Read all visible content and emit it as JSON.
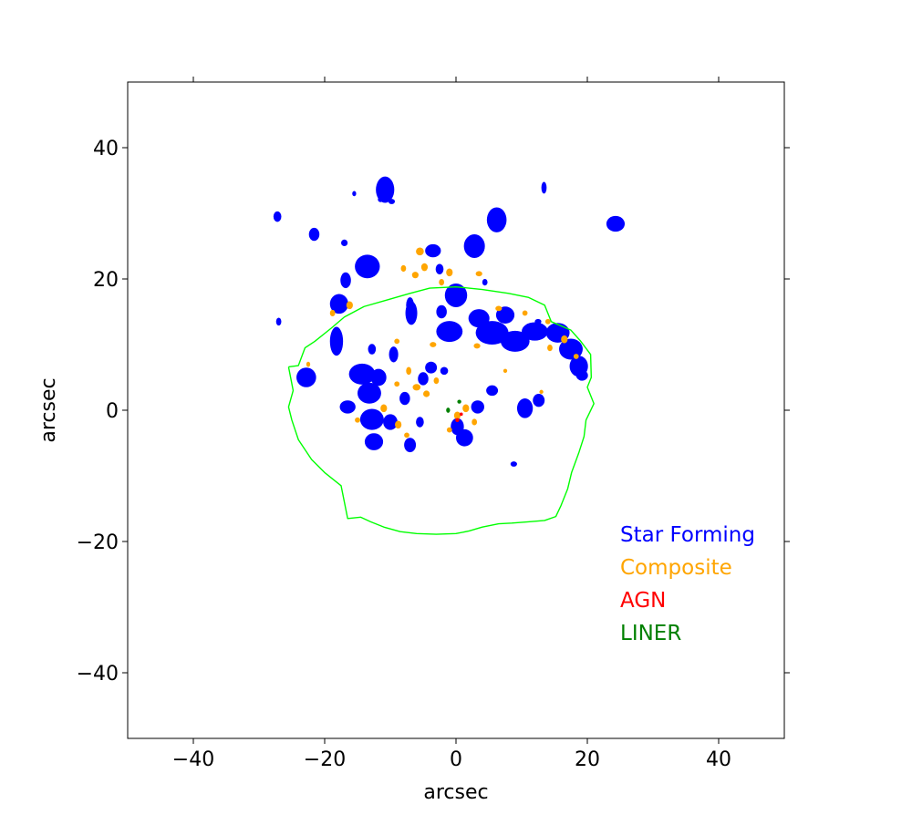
{
  "chart_data": {
    "type": "scatter",
    "xlabel": "arcsec",
    "ylabel": "arcsec",
    "xlim": [
      -50,
      50
    ],
    "ylim": [
      -50,
      50
    ],
    "xticks": [
      -40,
      -20,
      0,
      20,
      40
    ],
    "yticks": [
      -40,
      -20,
      0,
      20,
      40
    ],
    "xtick_labels": [
      "−40",
      "−20",
      "0",
      "20",
      "40"
    ],
    "ytick_labels": [
      "−40",
      "−20",
      "0",
      "20",
      "40"
    ],
    "grid": false,
    "legend": {
      "placement": "lower-right",
      "entries": [
        {
          "label": "Star Forming",
          "color": "#0000ff"
        },
        {
          "label": "Composite",
          "color": "#ffa500"
        },
        {
          "label": "AGN",
          "color": "#ff0000"
        },
        {
          "label": "LINER",
          "color": "#008000"
        }
      ]
    },
    "contour": {
      "color": "#00ff00",
      "points": [
        [
          -25.5,
          6.6
        ],
        [
          -24,
          6.8
        ],
        [
          -23,
          9.5
        ],
        [
          -21.5,
          10.5
        ],
        [
          -19,
          12.5
        ],
        [
          -17,
          14.2
        ],
        [
          -14,
          15.8
        ],
        [
          -10.5,
          16.8
        ],
        [
          -7,
          17.8
        ],
        [
          -4,
          18.6
        ],
        [
          0,
          18.8
        ],
        [
          4,
          18.4
        ],
        [
          8,
          17.8
        ],
        [
          11,
          17.2
        ],
        [
          13.5,
          16
        ],
        [
          14.5,
          13.5
        ],
        [
          17.5,
          12.2
        ],
        [
          19,
          10.5
        ],
        [
          20.5,
          8.5
        ],
        [
          20.6,
          5
        ],
        [
          20,
          3.5
        ],
        [
          21,
          1
        ],
        [
          19.8,
          -1.5
        ],
        [
          19.5,
          -4
        ],
        [
          18.7,
          -6.5
        ],
        [
          17.6,
          -9.5
        ],
        [
          17,
          -12
        ],
        [
          16,
          -14.5
        ],
        [
          15.2,
          -16.2
        ],
        [
          13.5,
          -16.8
        ],
        [
          11,
          -17
        ],
        [
          8.5,
          -17.2
        ],
        [
          6.5,
          -17.3
        ],
        [
          4,
          -17.8
        ],
        [
          2,
          -18.4
        ],
        [
          0,
          -18.8
        ],
        [
          -3,
          -18.9
        ],
        [
          -6,
          -18.8
        ],
        [
          -8.5,
          -18.5
        ],
        [
          -11,
          -17.8
        ],
        [
          -13,
          -17
        ],
        [
          -14.5,
          -16.3
        ],
        [
          -16.5,
          -16.5
        ],
        [
          -17,
          -14
        ],
        [
          -17.5,
          -11.5
        ],
        [
          -20,
          -9.5
        ],
        [
          -22,
          -7.5
        ],
        [
          -24,
          -4.5
        ],
        [
          -25,
          -1.5
        ],
        [
          -25.5,
          0.5
        ],
        [
          -24.8,
          3
        ],
        [
          -25.5,
          6.6
        ]
      ]
    },
    "series": [
      {
        "name": "Star Forming",
        "color": "#0000ff",
        "blobs": [
          {
            "x": -10.8,
            "y": 33.6,
            "rx": 1.4,
            "ry": 2.0
          },
          {
            "x": -27.2,
            "y": 29.5,
            "rx": 0.6,
            "ry": 0.8
          },
          {
            "x": -21.6,
            "y": 26.8,
            "rx": 0.8,
            "ry": 1.0
          },
          {
            "x": -17,
            "y": 25.5,
            "rx": 0.5,
            "ry": 0.5
          },
          {
            "x": -13.5,
            "y": 21.9,
            "rx": 1.9,
            "ry": 1.8
          },
          {
            "x": -16.8,
            "y": 19.8,
            "rx": 0.8,
            "ry": 1.2
          },
          {
            "x": -17.8,
            "y": 16.2,
            "rx": 1.4,
            "ry": 1.5
          },
          {
            "x": -18.2,
            "y": 10.5,
            "rx": 1.0,
            "ry": 2.2
          },
          {
            "x": -22.8,
            "y": 5.0,
            "rx": 1.5,
            "ry": 1.5
          },
          {
            "x": -27,
            "y": 13.5,
            "rx": 0.4,
            "ry": 0.6
          },
          {
            "x": -7,
            "y": 16.0,
            "rx": 0.6,
            "ry": 1.2
          },
          {
            "x": -3.5,
            "y": 24.3,
            "rx": 1.2,
            "ry": 1.0
          },
          {
            "x": -2.5,
            "y": 21.5,
            "rx": 0.6,
            "ry": 0.8
          },
          {
            "x": 6.2,
            "y": 29.0,
            "rx": 1.5,
            "ry": 1.9
          },
          {
            "x": 2.8,
            "y": 25.0,
            "rx": 1.6,
            "ry": 1.8
          },
          {
            "x": 0.0,
            "y": 17.5,
            "rx": 1.7,
            "ry": 1.8
          },
          {
            "x": -2.2,
            "y": 15.0,
            "rx": 0.8,
            "ry": 1.0
          },
          {
            "x": -6.8,
            "y": 14.8,
            "rx": 0.9,
            "ry": 1.8
          },
          {
            "x": -9.5,
            "y": 8.5,
            "rx": 0.7,
            "ry": 1.2
          },
          {
            "x": -12.8,
            "y": 9.3,
            "rx": 0.6,
            "ry": 0.8
          },
          {
            "x": -1.0,
            "y": 12.0,
            "rx": 2.0,
            "ry": 1.6
          },
          {
            "x": 3.5,
            "y": 14.0,
            "rx": 1.6,
            "ry": 1.4
          },
          {
            "x": 5.5,
            "y": 11.8,
            "rx": 2.5,
            "ry": 1.8
          },
          {
            "x": 9.0,
            "y": 10.5,
            "rx": 2.2,
            "ry": 1.6
          },
          {
            "x": 12.0,
            "y": 12.0,
            "rx": 2.0,
            "ry": 1.4
          },
          {
            "x": 7.5,
            "y": 14.5,
            "rx": 1.4,
            "ry": 1.3
          },
          {
            "x": 15.5,
            "y": 11.8,
            "rx": 1.8,
            "ry": 1.5
          },
          {
            "x": 17.5,
            "y": 9.3,
            "rx": 1.8,
            "ry": 1.6
          },
          {
            "x": 18.7,
            "y": 6.7,
            "rx": 1.4,
            "ry": 1.6
          },
          {
            "x": 19.2,
            "y": 5.3,
            "rx": 0.9,
            "ry": 0.8
          },
          {
            "x": 24.3,
            "y": 28.4,
            "rx": 1.4,
            "ry": 1.2
          },
          {
            "x": 13.4,
            "y": 33.9,
            "rx": 0.4,
            "ry": 0.9
          },
          {
            "x": -9.8,
            "y": 31.8,
            "rx": 0.5,
            "ry": 0.4
          },
          {
            "x": -11.5,
            "y": 32.1,
            "rx": 0.4,
            "ry": 0.4
          },
          {
            "x": -15.5,
            "y": 33.0,
            "rx": 0.3,
            "ry": 0.4
          },
          {
            "x": -14.3,
            "y": 5.5,
            "rx": 2.0,
            "ry": 1.6
          },
          {
            "x": -11.8,
            "y": 5.0,
            "rx": 1.2,
            "ry": 1.3
          },
          {
            "x": -13.2,
            "y": 2.6,
            "rx": 1.8,
            "ry": 1.6
          },
          {
            "x": -16.5,
            "y": 0.5,
            "rx": 1.2,
            "ry": 1.0
          },
          {
            "x": -12.8,
            "y": -1.4,
            "rx": 1.8,
            "ry": 1.6
          },
          {
            "x": -12.5,
            "y": -4.8,
            "rx": 1.4,
            "ry": 1.3
          },
          {
            "x": -10.0,
            "y": -1.8,
            "rx": 1.1,
            "ry": 1.2
          },
          {
            "x": -7.0,
            "y": -5.3,
            "rx": 0.9,
            "ry": 1.1
          },
          {
            "x": -5.5,
            "y": -1.8,
            "rx": 0.6,
            "ry": 0.8
          },
          {
            "x": -7.8,
            "y": 1.8,
            "rx": 0.8,
            "ry": 1.0
          },
          {
            "x": -5.0,
            "y": 4.8,
            "rx": 0.8,
            "ry": 1.0
          },
          {
            "x": -3.8,
            "y": 6.5,
            "rx": 0.9,
            "ry": 0.9
          },
          {
            "x": -1.8,
            "y": 6.0,
            "rx": 0.6,
            "ry": 0.6
          },
          {
            "x": 0.2,
            "y": -2.5,
            "rx": 1.0,
            "ry": 1.3
          },
          {
            "x": 1.3,
            "y": -4.2,
            "rx": 1.3,
            "ry": 1.3
          },
          {
            "x": 3.3,
            "y": 0.5,
            "rx": 1.0,
            "ry": 1.0
          },
          {
            "x": 5.5,
            "y": 3.0,
            "rx": 0.9,
            "ry": 0.8
          },
          {
            "x": 10.5,
            "y": 0.3,
            "rx": 1.2,
            "ry": 1.5
          },
          {
            "x": 12.6,
            "y": 1.5,
            "rx": 0.9,
            "ry": 1.0
          },
          {
            "x": 8.8,
            "y": -8.2,
            "rx": 0.5,
            "ry": 0.4
          },
          {
            "x": 12.5,
            "y": 13.5,
            "rx": 0.5,
            "ry": 0.4
          },
          {
            "x": 4.4,
            "y": 19.5,
            "rx": 0.4,
            "ry": 0.5
          }
        ]
      },
      {
        "name": "Composite",
        "color": "#ffa500",
        "blobs": [
          {
            "x": -5.5,
            "y": 24.2,
            "rx": 0.6,
            "ry": 0.6
          },
          {
            "x": -4.8,
            "y": 21.8,
            "rx": 0.5,
            "ry": 0.6
          },
          {
            "x": -6.2,
            "y": 20.6,
            "rx": 0.5,
            "ry": 0.5
          },
          {
            "x": -1.0,
            "y": 21.0,
            "rx": 0.5,
            "ry": 0.6
          },
          {
            "x": 3.5,
            "y": 20.8,
            "rx": 0.5,
            "ry": 0.4
          },
          {
            "x": -2.2,
            "y": 19.5,
            "rx": 0.4,
            "ry": 0.5
          },
          {
            "x": -8.0,
            "y": 21.6,
            "rx": 0.4,
            "ry": 0.5
          },
          {
            "x": -16.2,
            "y": 16.0,
            "rx": 0.5,
            "ry": 0.6
          },
          {
            "x": -18.8,
            "y": 14.8,
            "rx": 0.4,
            "ry": 0.5
          },
          {
            "x": 6.5,
            "y": 15.5,
            "rx": 0.5,
            "ry": 0.4
          },
          {
            "x": 10.5,
            "y": 14.8,
            "rx": 0.4,
            "ry": 0.4
          },
          {
            "x": 14.0,
            "y": 13.5,
            "rx": 0.4,
            "ry": 0.4
          },
          {
            "x": 16.5,
            "y": 10.8,
            "rx": 0.5,
            "ry": 0.6
          },
          {
            "x": 14.3,
            "y": 9.5,
            "rx": 0.4,
            "ry": 0.5
          },
          {
            "x": 18.3,
            "y": 8.2,
            "rx": 0.4,
            "ry": 0.4
          },
          {
            "x": -3.5,
            "y": 10.0,
            "rx": 0.5,
            "ry": 0.4
          },
          {
            "x": -9.0,
            "y": 10.5,
            "rx": 0.4,
            "ry": 0.4
          },
          {
            "x": -7.2,
            "y": 6.0,
            "rx": 0.4,
            "ry": 0.6
          },
          {
            "x": -6.0,
            "y": 3.5,
            "rx": 0.6,
            "ry": 0.5
          },
          {
            "x": -4.5,
            "y": 2.5,
            "rx": 0.5,
            "ry": 0.5
          },
          {
            "x": -3.0,
            "y": 4.5,
            "rx": 0.4,
            "ry": 0.5
          },
          {
            "x": -9.0,
            "y": 4.0,
            "rx": 0.4,
            "ry": 0.4
          },
          {
            "x": -11.0,
            "y": 0.3,
            "rx": 0.5,
            "ry": 0.6
          },
          {
            "x": -8.8,
            "y": -2.2,
            "rx": 0.5,
            "ry": 0.6
          },
          {
            "x": -7.5,
            "y": -3.8,
            "rx": 0.4,
            "ry": 0.4
          },
          {
            "x": -15.0,
            "y": -1.5,
            "rx": 0.4,
            "ry": 0.4
          },
          {
            "x": 0.2,
            "y": -0.8,
            "rx": 0.5,
            "ry": 0.6
          },
          {
            "x": 1.5,
            "y": 0.3,
            "rx": 0.5,
            "ry": 0.6
          },
          {
            "x": 2.8,
            "y": -1.8,
            "rx": 0.4,
            "ry": 0.5
          },
          {
            "x": -1.0,
            "y": -3.0,
            "rx": 0.4,
            "ry": 0.4
          },
          {
            "x": 3.2,
            "y": 9.8,
            "rx": 0.5,
            "ry": 0.4
          },
          {
            "x": -22.5,
            "y": 7.0,
            "rx": 0.3,
            "ry": 0.4
          },
          {
            "x": 13.0,
            "y": 2.8,
            "rx": 0.3,
            "ry": 0.3
          },
          {
            "x": 7.5,
            "y": 6.0,
            "rx": 0.3,
            "ry": 0.3
          }
        ]
      },
      {
        "name": "AGN",
        "color": "#ff0000",
        "blobs": [
          {
            "x": 0.2,
            "y": -1.5,
            "rx": 0.3,
            "ry": 0.3
          },
          {
            "x": 0.8,
            "y": -0.6,
            "rx": 0.25,
            "ry": 0.25
          }
        ]
      },
      {
        "name": "LINER",
        "color": "#008000",
        "blobs": [
          {
            "x": -1.2,
            "y": 0.0,
            "rx": 0.3,
            "ry": 0.4
          },
          {
            "x": 0.5,
            "y": 1.3,
            "rx": 0.3,
            "ry": 0.3
          }
        ]
      }
    ]
  }
}
